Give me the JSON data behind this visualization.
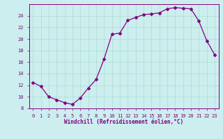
{
  "x": [
    0,
    1,
    2,
    3,
    4,
    5,
    6,
    7,
    8,
    9,
    10,
    11,
    12,
    13,
    14,
    15,
    16,
    17,
    18,
    19,
    20,
    21,
    22,
    23
  ],
  "y": [
    12.5,
    11.8,
    10.0,
    9.5,
    9.0,
    8.7,
    9.8,
    11.5,
    13.0,
    16.5,
    20.8,
    21.0,
    23.2,
    23.7,
    24.2,
    24.3,
    24.5,
    25.2,
    25.4,
    25.3,
    25.2,
    23.1,
    19.7,
    17.3
  ],
  "line_color": "#800080",
  "marker": "D",
  "markersize": 2.0,
  "linewidth": 0.9,
  "xlabel": "Windchill (Refroidissement éolien,°C)",
  "xlabel_fontsize": 5.5,
  "bg_color": "#cceeee",
  "grid_color": "#aaddcc",
  "axis_color": "#800080",
  "tick_color": "#800080",
  "ylim": [
    8,
    26
  ],
  "xlim": [
    -0.5,
    23.5
  ],
  "yticks": [
    8,
    10,
    12,
    14,
    16,
    18,
    20,
    22,
    24
  ],
  "xticks": [
    0,
    1,
    2,
    3,
    4,
    5,
    6,
    7,
    8,
    9,
    10,
    11,
    12,
    13,
    14,
    15,
    16,
    17,
    18,
    19,
    20,
    21,
    22,
    23
  ],
  "tick_fontsize": 5.0
}
